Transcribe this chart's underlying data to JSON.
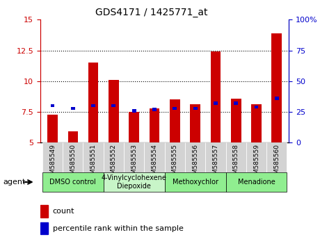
{
  "title": "GDS4171 / 1425771_at",
  "samples": [
    "GSM585549",
    "GSM585550",
    "GSM585551",
    "GSM585552",
    "GSM585553",
    "GSM585554",
    "GSM585555",
    "GSM585556",
    "GSM585557",
    "GSM585558",
    "GSM585559",
    "GSM585560"
  ],
  "count_values": [
    7.3,
    5.9,
    11.5,
    10.1,
    7.5,
    7.8,
    8.5,
    8.1,
    12.4,
    8.6,
    8.1,
    13.9
  ],
  "percentile_values": [
    30,
    28,
    30,
    30,
    26,
    27,
    28,
    28,
    32,
    32,
    29,
    36
  ],
  "bar_bottom": 5.0,
  "ylim_left": [
    5,
    15
  ],
  "ylim_right": [
    0,
    100
  ],
  "yticks_left": [
    5.0,
    7.5,
    10.0,
    12.5,
    15.0
  ],
  "ytick_labels_left": [
    "5",
    "7.5",
    "10",
    "12.5",
    "15"
  ],
  "yticks_right": [
    0,
    25,
    50,
    75,
    100
  ],
  "ytick_labels_right": [
    "0",
    "25",
    "50",
    "75",
    "100%"
  ],
  "hlines": [
    7.5,
    10.0,
    12.5
  ],
  "bar_color": "#cc0000",
  "percentile_color": "#0000cc",
  "bar_width": 0.5,
  "percentile_bar_width": 0.2,
  "agents": [
    {
      "label": "DMSO control",
      "start": 0,
      "end": 2,
      "color": "#90ee90"
    },
    {
      "label": "4-Vinylcyclohexene\nDiepoxide",
      "start": 3,
      "end": 5,
      "color": "#c8f5c8"
    },
    {
      "label": "Methoxychlor",
      "start": 6,
      "end": 8,
      "color": "#90ee90"
    },
    {
      "label": "Menadione",
      "start": 9,
      "end": 11,
      "color": "#90ee90"
    }
  ],
  "agent_label": "agent",
  "legend_count_label": "count",
  "legend_percentile_label": "percentile rank within the sample",
  "left_axis_color": "#cc0000",
  "right_axis_color": "#0000cc",
  "tick_label_bg": "#d3d3d3"
}
